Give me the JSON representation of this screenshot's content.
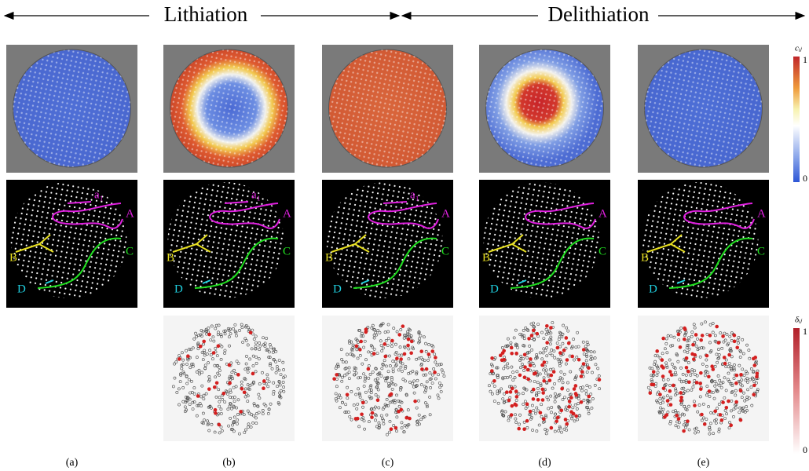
{
  "header": {
    "lithiation": "Lithiation",
    "delithiation": "Delithiation"
  },
  "panels": [
    {
      "label": "(a)",
      "annotations": {
        "a1": "a₁",
        "A": "A",
        "B": "B",
        "C": "C",
        "D": "D"
      }
    },
    {
      "label": "(b)",
      "annotations": {
        "a1": "a₁",
        "A": "A",
        "B": "B",
        "C": "C",
        "D": "D"
      }
    },
    {
      "label": "(c)",
      "annotations": {
        "a1": "a₁",
        "A": "A",
        "B": "B",
        "C": "C",
        "D": "D"
      }
    },
    {
      "label": "(d)",
      "annotations": {
        "A": "A",
        "B": "B",
        "C": "C",
        "D": "D"
      }
    },
    {
      "label": "(e)",
      "annotations": {
        "A": "A",
        "B": "B",
        "C": "C",
        "D": "D"
      }
    }
  ],
  "colorbars": [
    {
      "title": "cᵢⱼ",
      "max": "1",
      "min": "0"
    },
    {
      "title": "δᵢⱼ",
      "max": "1",
      "min": "0"
    }
  ]
}
